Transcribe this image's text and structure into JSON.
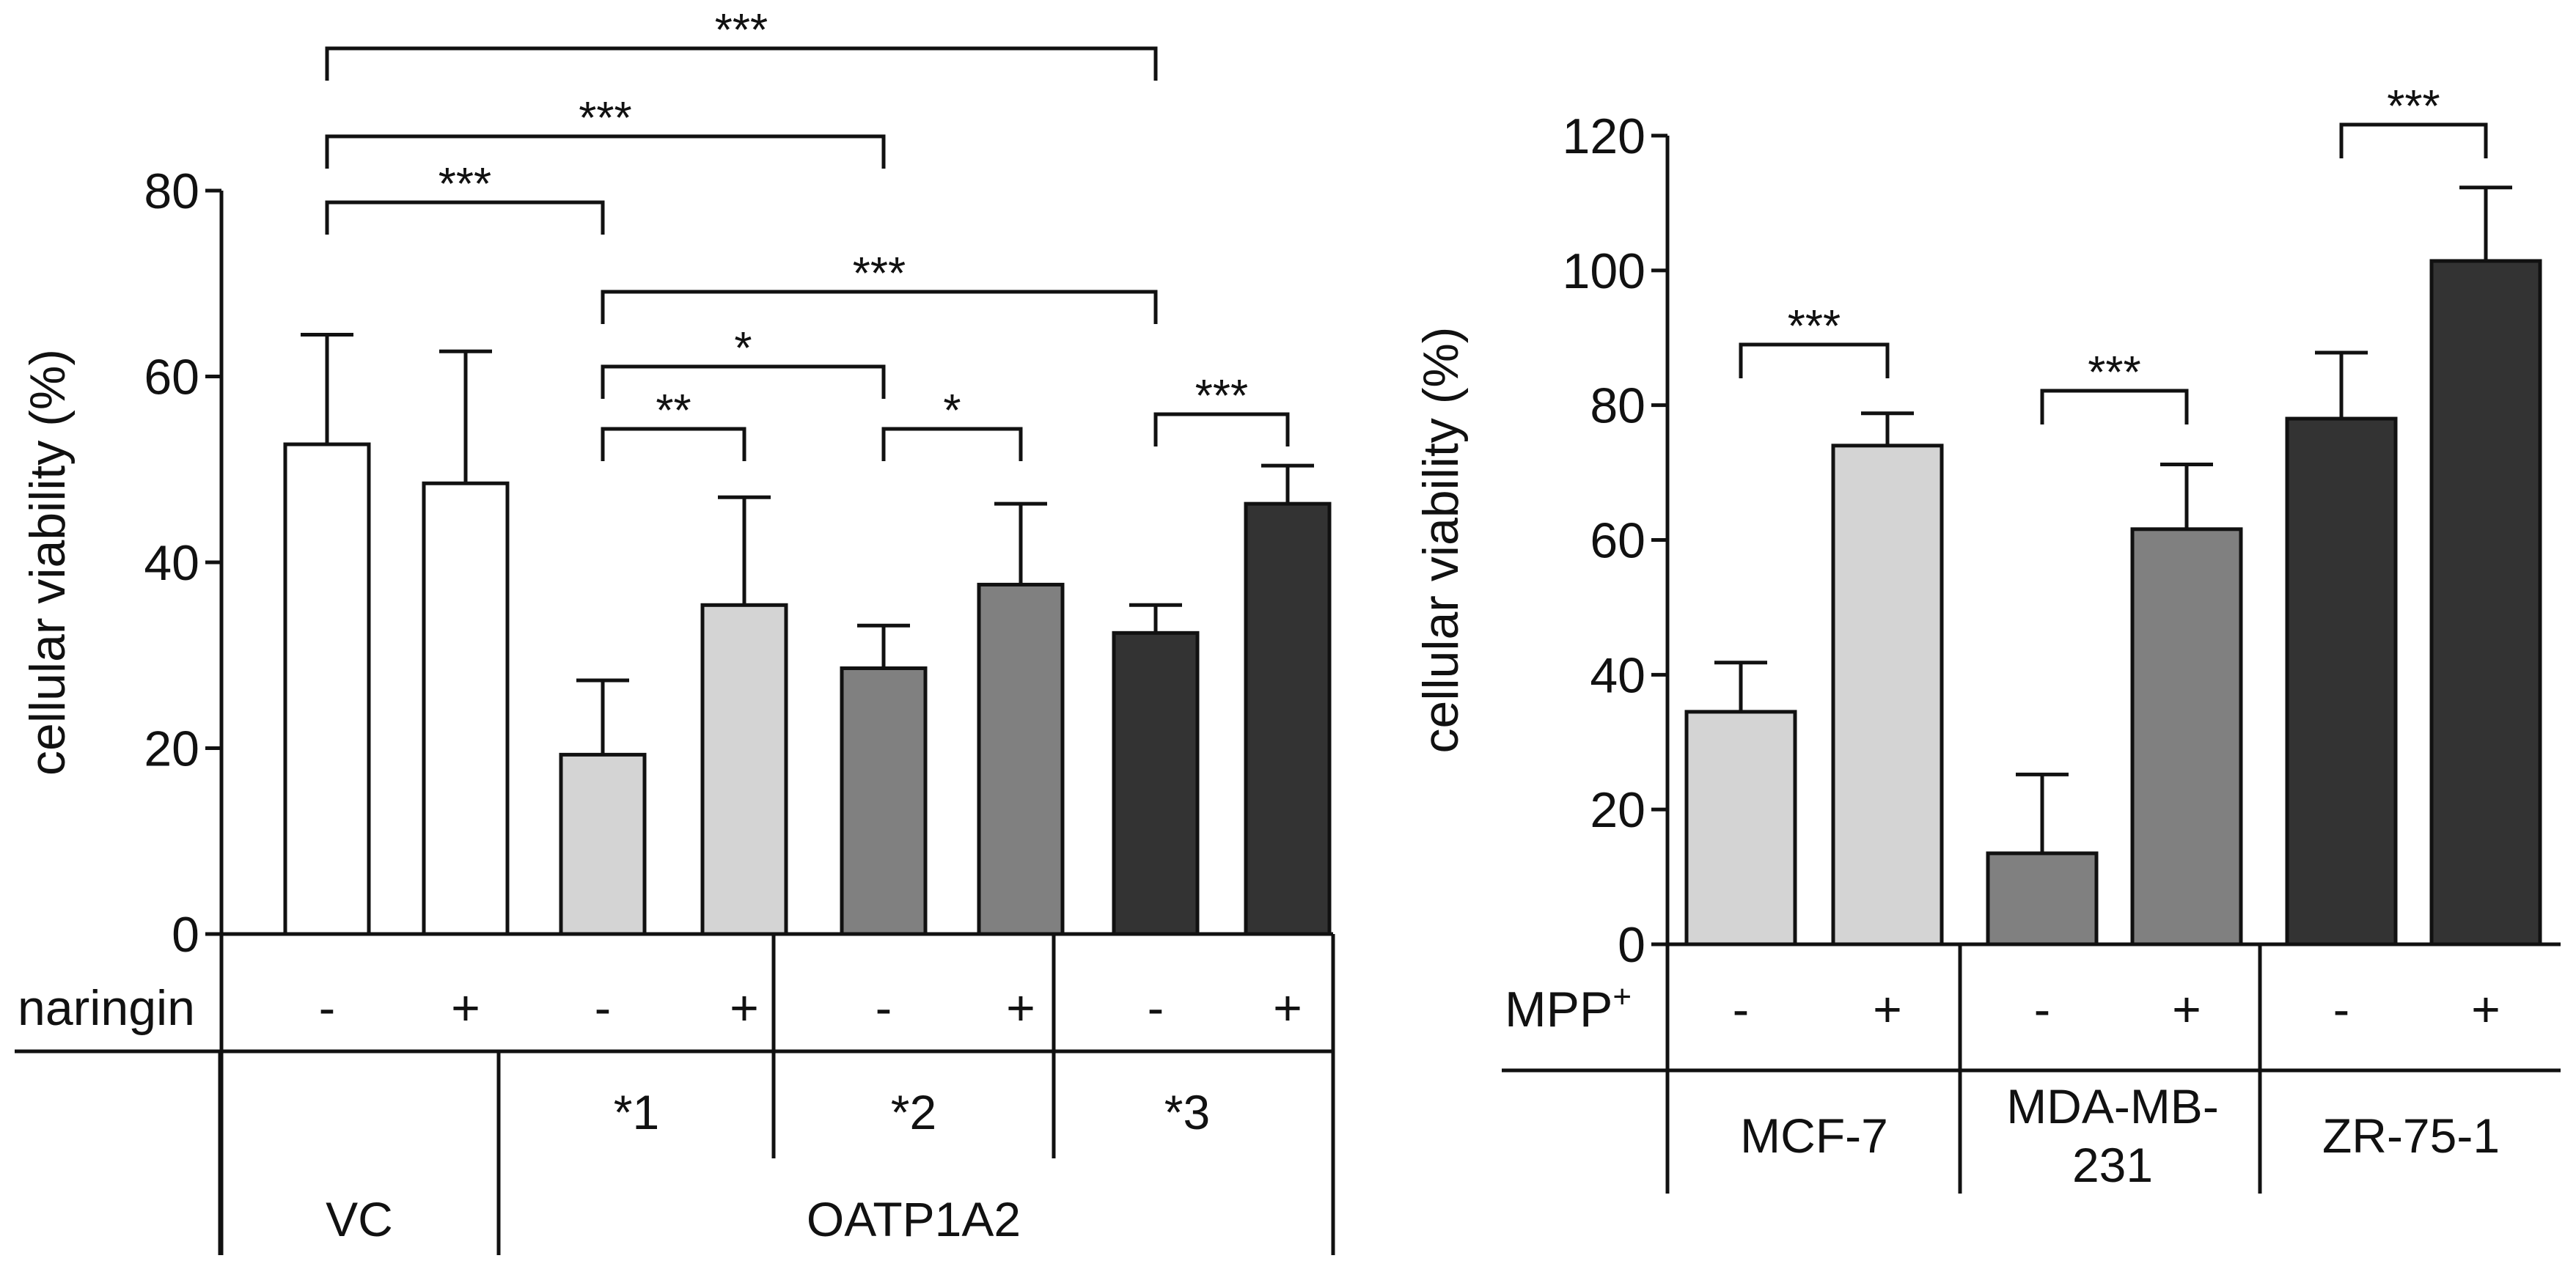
{
  "chart_data": [
    {
      "type": "bar",
      "ylabel": "cellular viability (%)",
      "ylim": [
        0,
        80
      ],
      "yticks": [
        0,
        20,
        40,
        60,
        80
      ],
      "treatment_label": "naringin",
      "bars": [
        {
          "group": "VC",
          "treatment": "-",
          "value": 52.7,
          "error": 11.8,
          "color": "#ffffff"
        },
        {
          "group": "VC",
          "treatment": "+",
          "value": 48.5,
          "error": 14.2,
          "color": "#ffffff"
        },
        {
          "group": "*1",
          "treatment": "-",
          "value": 19.3,
          "error": 8.0,
          "color": "#d4d4d4"
        },
        {
          "group": "*1",
          "treatment": "+",
          "value": 35.4,
          "error": 11.6,
          "color": "#d4d4d4"
        },
        {
          "group": "*2",
          "treatment": "-",
          "value": 28.6,
          "error": 4.6,
          "color": "#808080"
        },
        {
          "group": "*2",
          "treatment": "+",
          "value": 37.6,
          "error": 8.7,
          "color": "#808080"
        },
        {
          "group": "*3",
          "treatment": "-",
          "value": 32.4,
          "error": 3.0,
          "color": "#333333"
        },
        {
          "group": "*3",
          "treatment": "+",
          "value": 46.3,
          "error": 4.1,
          "color": "#333333"
        }
      ],
      "subgroups": [
        "*1",
        "*2",
        "*3"
      ],
      "groups": [
        "VC",
        "OATP1A2"
      ],
      "significance": [
        {
          "from": 0,
          "to": 6,
          "label": "***"
        },
        {
          "from": 0,
          "to": 4,
          "label": "***"
        },
        {
          "from": 0,
          "to": 2,
          "label": "***"
        },
        {
          "from": 2,
          "to": 6,
          "label": "***"
        },
        {
          "from": 2,
          "to": 4,
          "label": "*"
        },
        {
          "from": 2,
          "to": 3,
          "label": "**"
        },
        {
          "from": 4,
          "to": 5,
          "label": "*"
        },
        {
          "from": 6,
          "to": 7,
          "label": "***"
        }
      ]
    },
    {
      "type": "bar",
      "ylabel": "cellular viability (%)",
      "ylim": [
        0,
        120
      ],
      "yticks": [
        0,
        20,
        40,
        60,
        80,
        100,
        120
      ],
      "treatment_label": "MPP",
      "treatment_superscript": "+",
      "bars": [
        {
          "group": "MCF-7",
          "treatment": "-",
          "value": 34.5,
          "error": 7.3,
          "color": "#d4d4d4"
        },
        {
          "group": "MCF-7",
          "treatment": "+",
          "value": 74.0,
          "error": 4.8,
          "color": "#d4d4d4"
        },
        {
          "group": "MDA-MB-231",
          "treatment": "-",
          "value": 13.5,
          "error": 11.7,
          "color": "#808080"
        },
        {
          "group": "MDA-MB-231",
          "treatment": "+",
          "value": 61.6,
          "error": 9.6,
          "color": "#808080"
        },
        {
          "group": "ZR-75-1",
          "treatment": "-",
          "value": 78.0,
          "error": 9.8,
          "color": "#333333"
        },
        {
          "group": "ZR-75-1",
          "treatment": "+",
          "value": 101.4,
          "error": 10.9,
          "color": "#333333"
        }
      ],
      "groups": [
        {
          "lines": [
            "MCF-7"
          ]
        },
        {
          "lines": [
            "MDA-MB-",
            "231"
          ]
        },
        {
          "lines": [
            "ZR-75-1"
          ]
        }
      ],
      "significance": [
        {
          "from": 0,
          "to": 1,
          "label": "***"
        },
        {
          "from": 2,
          "to": 3,
          "label": "***"
        },
        {
          "from": 4,
          "to": 5,
          "label": "***"
        }
      ]
    }
  ]
}
